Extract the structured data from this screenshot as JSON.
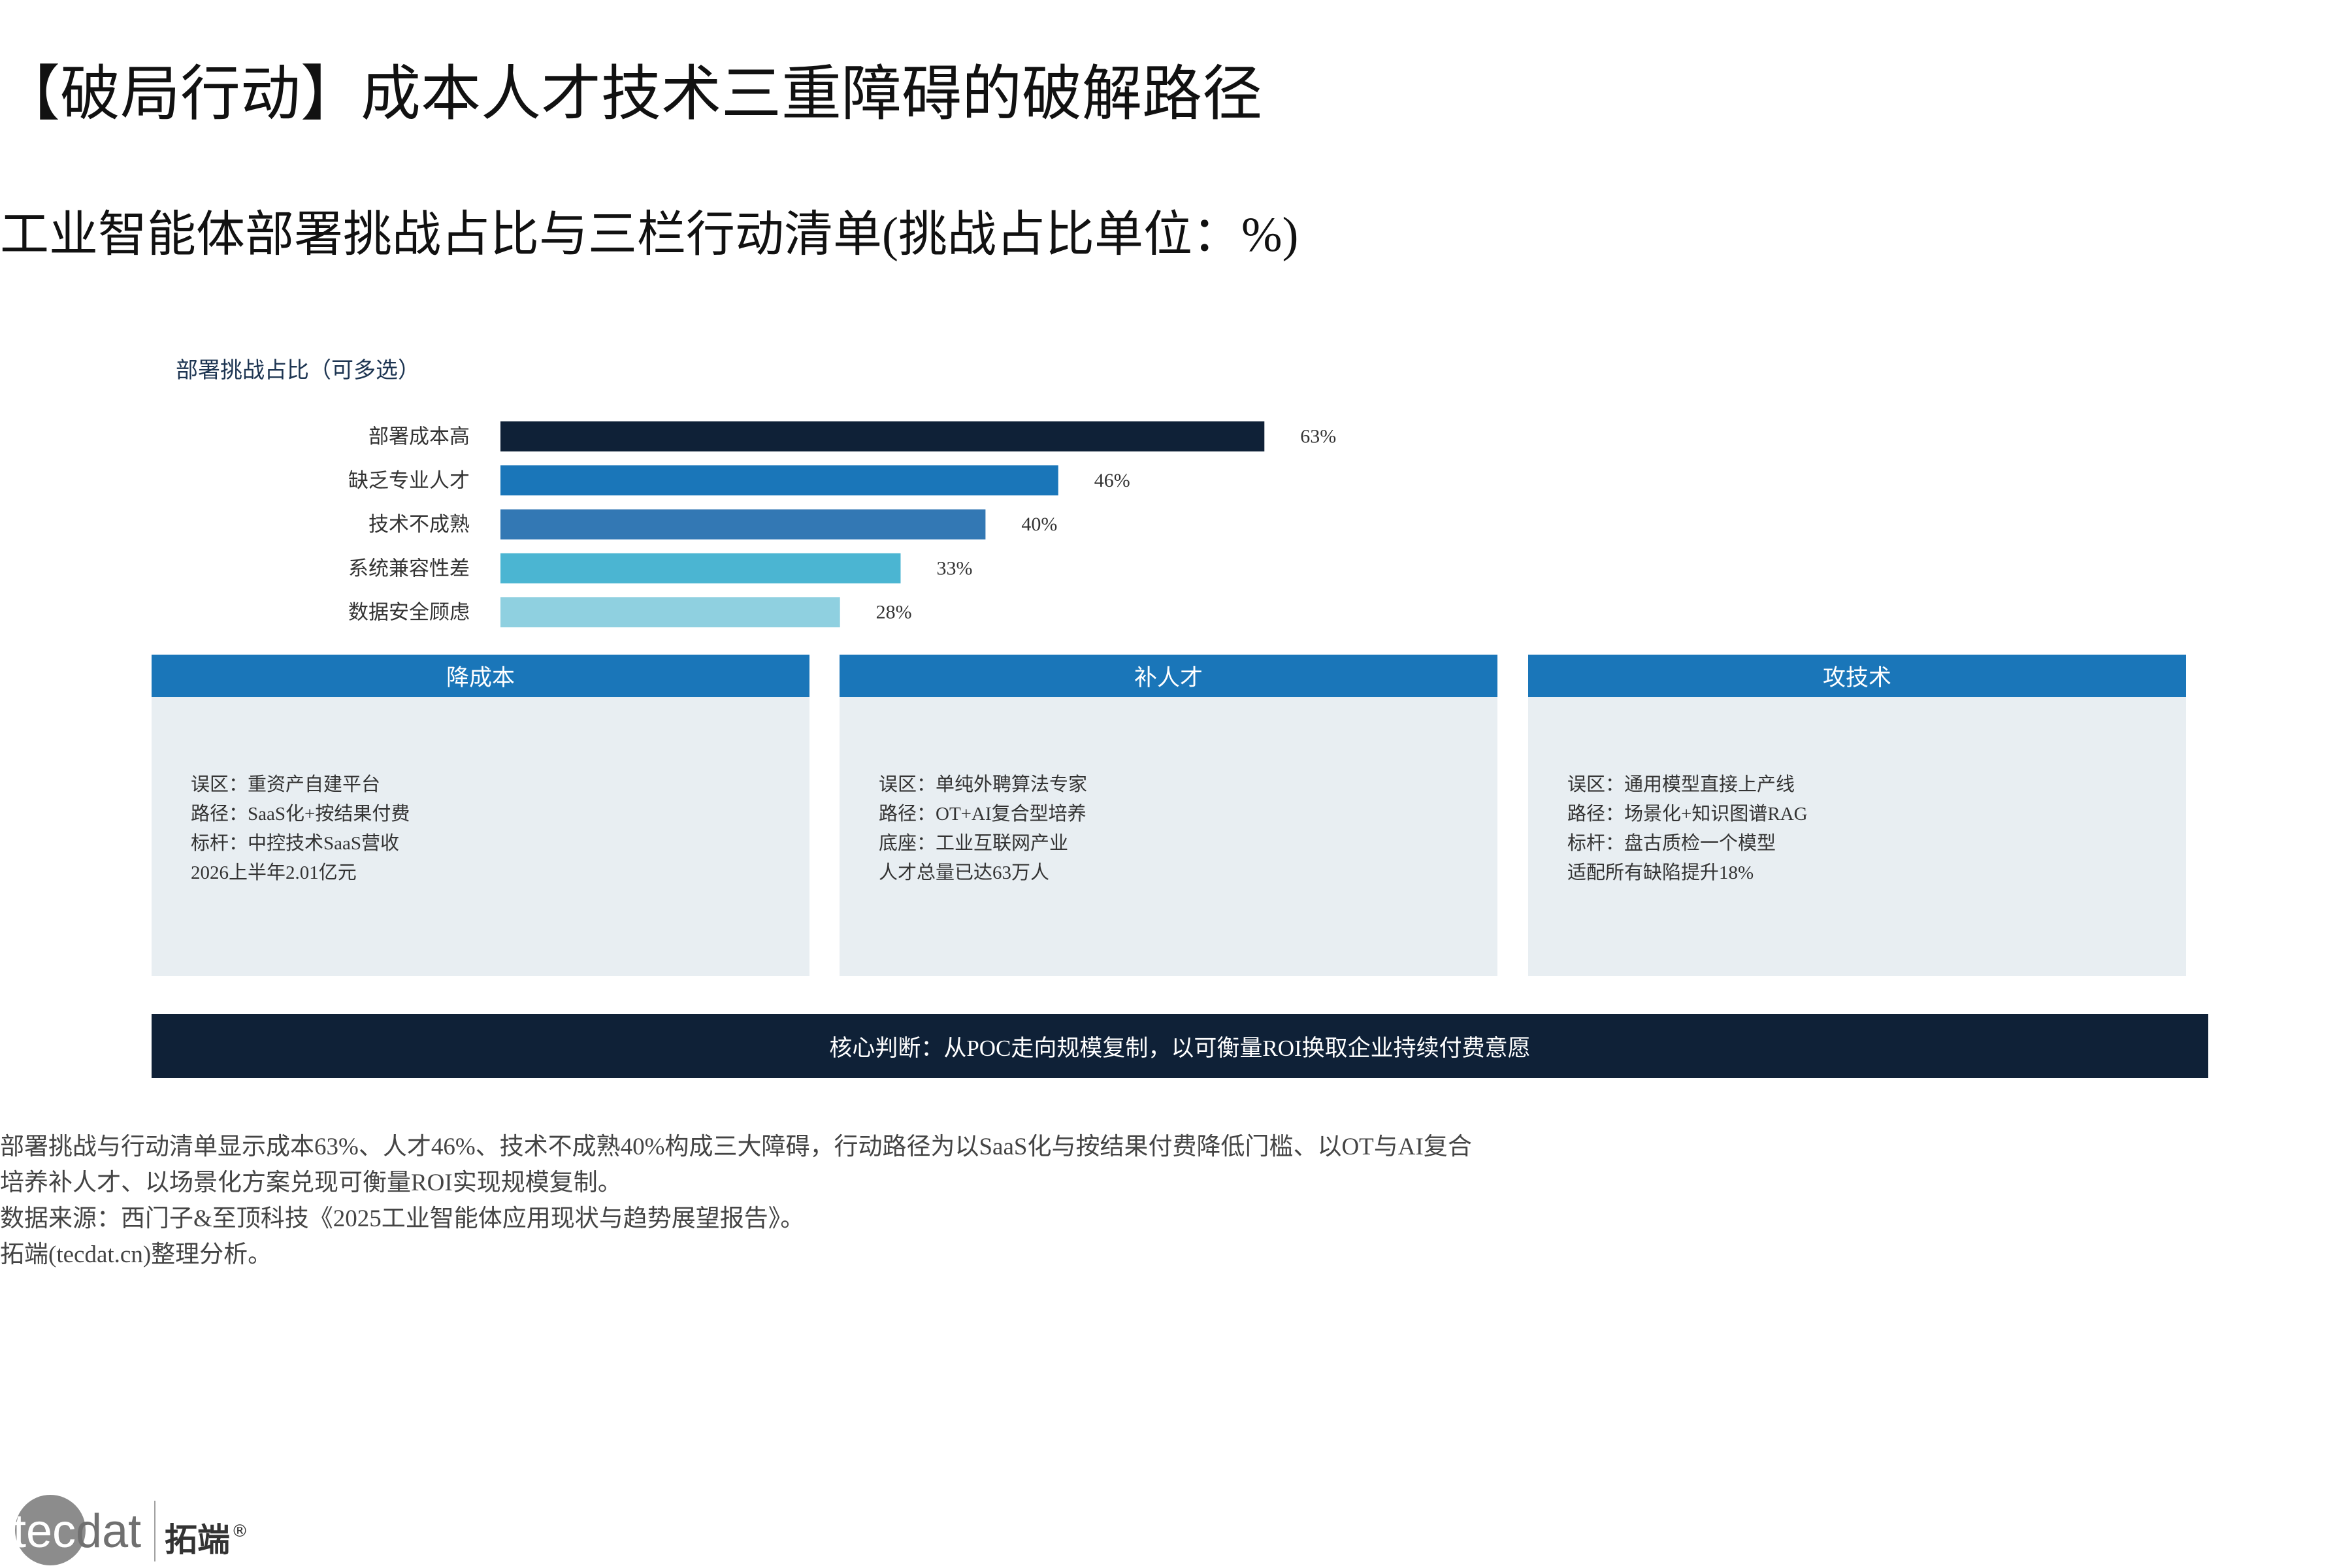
{
  "title": "【破局行动】成本人才技术三重障碍的破解路径",
  "subtitle": "工业智能体部署挑战占比与三栏行动清单(挑战占比单位：%)",
  "chart_data": {
    "type": "bar",
    "orientation": "horizontal",
    "title": "部署挑战占比（可多选）",
    "categories": [
      "部署成本高",
      "缺乏专业人才",
      "技术不成熟",
      "系统兼容性差",
      "数据安全顾虑"
    ],
    "values": [
      63,
      46,
      40,
      33,
      28
    ],
    "value_labels": [
      "63%",
      "46%",
      "40%",
      "33%",
      "28%"
    ],
    "colors": [
      "#0f2137",
      "#1a76b9",
      "#3378b4",
      "#4bb5d2",
      "#8fd0e0"
    ],
    "xlim": [
      0,
      100
    ],
    "grid": false,
    "legend": "none"
  },
  "cards": [
    {
      "header": "降成本",
      "lines": [
        "误区：重资产自建平台",
        "路径：SaaS化+按结果付费",
        "标杆：中控技术SaaS营收",
        "2026上半年2.01亿元"
      ]
    },
    {
      "header": "补人才",
      "lines": [
        "误区：单纯外聘算法专家",
        "路径：OT+AI复合型培养",
        "底座：工业互联网产业",
        "人才总量已达63万人"
      ]
    },
    {
      "header": "攻技术",
      "lines": [
        "误区：通用模型直接上产线",
        "路径：场景化+知识图谱RAG",
        "标杆：盘古质检一个模型",
        "适配所有缺陷提升18%"
      ]
    }
  ],
  "banner": "核心判断：从POC走向规模复制，以可衡量ROI换取企业持续付费意愿",
  "footer": {
    "lines": [
      "部署挑战与行动清单显示成本63%、人才46%、技术不成熟40%构成三大障碍，行动路径为以SaaS化与按结果付费降低门槛、以OT与AI复合",
      "培养补人才、以场景化方案兑现可衡量ROI实现规模复制。",
      "数据来源：西门子&至顶科技《2025工业智能体应用现状与趋势展望报告》。",
      "拓端(tecdat.cn)整理分析。"
    ]
  },
  "logo": {
    "part1": "tec",
    "part2": "dat",
    "brand": "拓端",
    "registered": "®"
  },
  "colors": {
    "header_blue": "#1a76b9",
    "navy": "#0f2137",
    "card_background": "#e8eef2"
  }
}
